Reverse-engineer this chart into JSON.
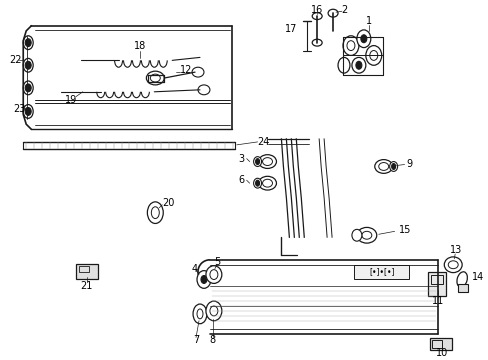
{
  "background_color": "#ffffff",
  "fig_width": 4.89,
  "fig_height": 3.6,
  "dpi": 100,
  "line_color": "#1a1a1a",
  "label_fontsize": 7.0,
  "label_color": "#000000"
}
